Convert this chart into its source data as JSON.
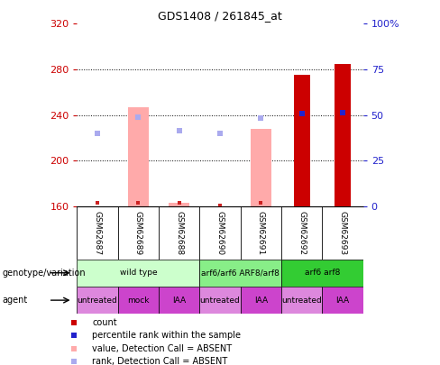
{
  "title": "GDS1408 / 261845_at",
  "samples": [
    "GSM62687",
    "GSM62689",
    "GSM62688",
    "GSM62690",
    "GSM62691",
    "GSM62692",
    "GSM62693"
  ],
  "ylim": [
    160,
    320
  ],
  "yticks": [
    160,
    200,
    240,
    280,
    320
  ],
  "y2lim": [
    0,
    100
  ],
  "y2ticks": [
    0,
    25,
    50,
    75,
    100
  ],
  "y2ticklabels": [
    "0",
    "25",
    "50",
    "75",
    "100%"
  ],
  "bar_bottom": 160,
  "count_values": [
    163,
    163,
    163,
    161,
    163,
    275,
    285
  ],
  "count_present": [
    false,
    false,
    false,
    false,
    false,
    true,
    true
  ],
  "value_bars": [
    null,
    247,
    163,
    null,
    228,
    null,
    null
  ],
  "value_bar_color": "#ffaaaa",
  "rank_markers": [
    224,
    238,
    226,
    224,
    237,
    241,
    242
  ],
  "rank_present": [
    false,
    false,
    false,
    false,
    false,
    true,
    true
  ],
  "rank_marker_color_absent": "#aaaaee",
  "rank_marker_color_present": "#2222cc",
  "count_color_absent": "#cc2222",
  "count_color_present": "#cc0000",
  "genotype_groups": [
    {
      "label": "wild type",
      "start": 0,
      "end": 3,
      "color": "#ccffcc"
    },
    {
      "label": "arf6/arf6 ARF8/arf8",
      "start": 3,
      "end": 5,
      "color": "#88ee88"
    },
    {
      "label": "arf6 arf8",
      "start": 5,
      "end": 7,
      "color": "#33cc33"
    }
  ],
  "agent_groups": [
    {
      "label": "untreated",
      "start": 0,
      "end": 1,
      "color": "#dd88dd"
    },
    {
      "label": "mock",
      "start": 1,
      "end": 2,
      "color": "#cc44cc"
    },
    {
      "label": "IAA",
      "start": 2,
      "end": 3,
      "color": "#cc44cc"
    },
    {
      "label": "untreated",
      "start": 3,
      "end": 4,
      "color": "#dd88dd"
    },
    {
      "label": "IAA",
      "start": 4,
      "end": 5,
      "color": "#cc44cc"
    },
    {
      "label": "untreated",
      "start": 5,
      "end": 6,
      "color": "#dd88dd"
    },
    {
      "label": "IAA",
      "start": 6,
      "end": 7,
      "color": "#cc44cc"
    }
  ],
  "legend_items": [
    {
      "label": "count",
      "color": "#cc0000"
    },
    {
      "label": "percentile rank within the sample",
      "color": "#2222cc"
    },
    {
      "label": "value, Detection Call = ABSENT",
      "color": "#ffaaaa"
    },
    {
      "label": "rank, Detection Call = ABSENT",
      "color": "#aaaaee"
    }
  ],
  "left_labels": [
    "genotype/variation",
    "agent"
  ],
  "ax_left_color": "#cc0000",
  "ax_right_color": "#2222cc"
}
